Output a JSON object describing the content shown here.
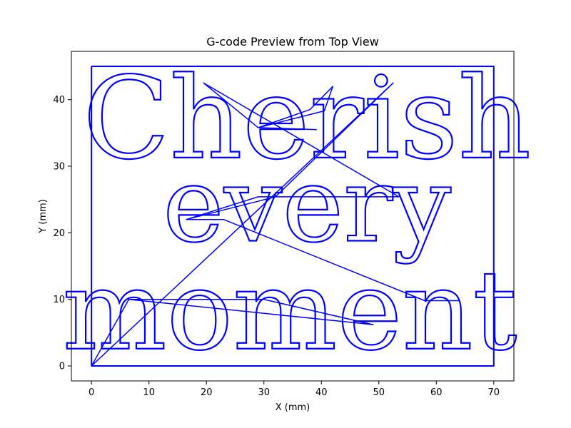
{
  "chart_data": {
    "type": "line",
    "title": "G-code Preview from Top View",
    "xlabel": "X (mm)",
    "ylabel": "Y (mm)",
    "xlim": [
      -3.5,
      73.5
    ],
    "ylim": [
      -2.25,
      47.25
    ],
    "x_ticks": [
      0,
      10,
      20,
      30,
      40,
      50,
      60,
      70
    ],
    "y_ticks": [
      0,
      10,
      20,
      30,
      40
    ],
    "grid": false,
    "line_color": "#0000ff",
    "series": [
      {
        "kind": "border",
        "points": [
          [
            0,
            45
          ],
          [
            70,
            45
          ],
          [
            70,
            0
          ],
          [
            0,
            0
          ],
          [
            0,
            45
          ]
        ]
      },
      {
        "kind": "travel",
        "points": [
          [
            0,
            0
          ],
          [
            6.5,
            10
          ],
          [
            49,
            6.2
          ],
          [
            30,
            10
          ],
          [
            6.5,
            10
          ],
          [
            0,
            0
          ],
          [
            52.5,
            42.5
          ],
          [
            32,
            25.4
          ],
          [
            16.5,
            22
          ],
          [
            23,
            22
          ],
          [
            58,
            9.8
          ],
          [
            64,
            9.8
          ],
          [
            58,
            9.8
          ],
          [
            23,
            22
          ],
          [
            16.5,
            22
          ],
          [
            29,
            25.4
          ],
          [
            53.5,
            25.4
          ],
          [
            19.5,
            42.5
          ],
          [
            29,
            35.8
          ],
          [
            38,
            38.5
          ],
          [
            42,
            42
          ],
          [
            40.5,
            38.3
          ],
          [
            29,
            35.8
          ],
          [
            39.2,
            35.5
          ]
        ]
      }
    ],
    "engraved_text": [
      {
        "text": "Cherish",
        "x": 37.5,
        "y": 31.3,
        "size_mm": 17
      },
      {
        "text": "every",
        "x": 37.5,
        "y": 18.8,
        "size_mm": 15.5
      },
      {
        "text": "moment",
        "x": 34.5,
        "y": 2.6,
        "size_mm": 16.5
      }
    ]
  }
}
